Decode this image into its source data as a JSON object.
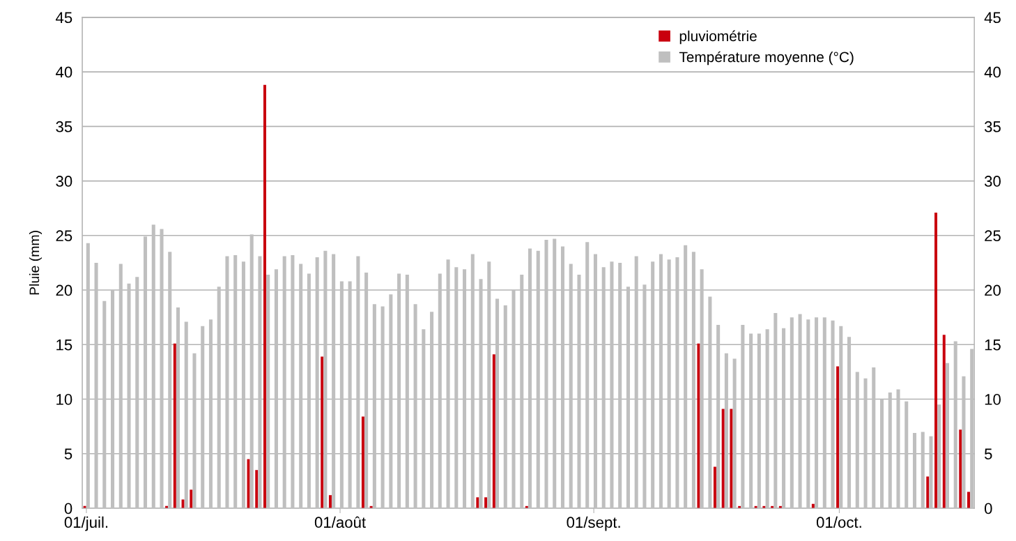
{
  "chart_data": {
    "type": "bar",
    "ylabel": "Pluie (mm)",
    "categories": [
      "01/juil.",
      null,
      null,
      null,
      null,
      null,
      null,
      null,
      null,
      null,
      null,
      null,
      null,
      null,
      null,
      null,
      null,
      null,
      null,
      null,
      null,
      null,
      null,
      null,
      null,
      null,
      null,
      null,
      null,
      null,
      null,
      "01/août",
      null,
      null,
      null,
      null,
      null,
      null,
      null,
      null,
      null,
      null,
      null,
      null,
      null,
      null,
      null,
      null,
      null,
      null,
      null,
      null,
      null,
      null,
      null,
      null,
      null,
      null,
      null,
      null,
      null,
      null,
      "01/sept.",
      null,
      null,
      null,
      null,
      null,
      null,
      null,
      null,
      null,
      null,
      null,
      null,
      null,
      null,
      null,
      null,
      null,
      null,
      null,
      null,
      null,
      null,
      null,
      null,
      null,
      null,
      null,
      null,
      null,
      "01/oct.",
      null,
      null,
      null,
      null,
      null,
      null,
      null,
      null,
      null,
      null,
      null,
      null,
      null,
      null,
      null,
      null
    ],
    "series": [
      {
        "name": "pluviométrie",
        "color": "#c9000e",
        "values": [
          0.2,
          0,
          0,
          0,
          0,
          0,
          0,
          0,
          0,
          0,
          0.2,
          15.1,
          0.8,
          1.7,
          0,
          0,
          0,
          0,
          0,
          0,
          4.5,
          3.5,
          38.8,
          0,
          0,
          0,
          0,
          0,
          0,
          13.9,
          1.2,
          0,
          0,
          0,
          8.4,
          0.2,
          0,
          0,
          0,
          0,
          0,
          0,
          0,
          0,
          0,
          0,
          0,
          0,
          1.0,
          1.0,
          14.1,
          0,
          0,
          0,
          0.2,
          0,
          0,
          0,
          0,
          0,
          0,
          0,
          0,
          0,
          0,
          0,
          0,
          0,
          0,
          0,
          0,
          0,
          0,
          0,
          0,
          15.1,
          0,
          3.8,
          9.1,
          9.1,
          0.2,
          0,
          0.2,
          0.2,
          0.2,
          0.2,
          0,
          0,
          0,
          0.4,
          0,
          0,
          13.0,
          0,
          0,
          0,
          0,
          0,
          0,
          0,
          0,
          0,
          0,
          2.9,
          27.1,
          15.9,
          0,
          7.2,
          1.5
        ]
      },
      {
        "name": "Température moyenne (°C)",
        "color": "#bfbfbf",
        "axis": "y2",
        "values": [
          24.3,
          22.5,
          19.0,
          20.0,
          22.4,
          20.6,
          21.2,
          24.9,
          26.0,
          25.6,
          23.5,
          18.4,
          17.1,
          14.2,
          16.7,
          17.3,
          20.3,
          23.1,
          23.2,
          22.6,
          25.1,
          23.1,
          21.4,
          21.9,
          23.1,
          23.2,
          22.4,
          21.5,
          23.0,
          23.6,
          23.3,
          20.8,
          20.8,
          23.1,
          21.6,
          18.7,
          18.5,
          19.6,
          21.5,
          21.4,
          18.7,
          16.4,
          18.0,
          21.5,
          22.8,
          22.1,
          21.9,
          23.3,
          21.0,
          22.6,
          19.2,
          18.6,
          20.0,
          21.4,
          23.8,
          23.6,
          24.6,
          24.7,
          24.0,
          22.4,
          21.4,
          24.4,
          23.3,
          22.1,
          22.6,
          22.5,
          20.3,
          23.1,
          20.5,
          22.6,
          23.3,
          22.8,
          23.0,
          24.1,
          23.5,
          21.9,
          19.4,
          16.8,
          14.2,
          13.7,
          16.8,
          16.0,
          16.0,
          16.4,
          17.9,
          16.5,
          17.5,
          17.8,
          17.3,
          17.5,
          17.5,
          17.2,
          16.7,
          15.7,
          12.5,
          11.9,
          12.9,
          10.0,
          10.6,
          10.9,
          9.8,
          6.9,
          7.0,
          6.6,
          9.5,
          13.3,
          15.3,
          12.1,
          14.6
        ]
      }
    ],
    "ylim": [
      0,
      45
    ],
    "yticks": [
      0,
      5,
      10,
      15,
      20,
      25,
      30,
      35,
      40,
      45
    ],
    "y2lim": [
      0,
      45
    ],
    "y2ticks": [
      0,
      5,
      10,
      15,
      20,
      25,
      30,
      35,
      40,
      45
    ],
    "grid": "y",
    "legend": "top right"
  }
}
